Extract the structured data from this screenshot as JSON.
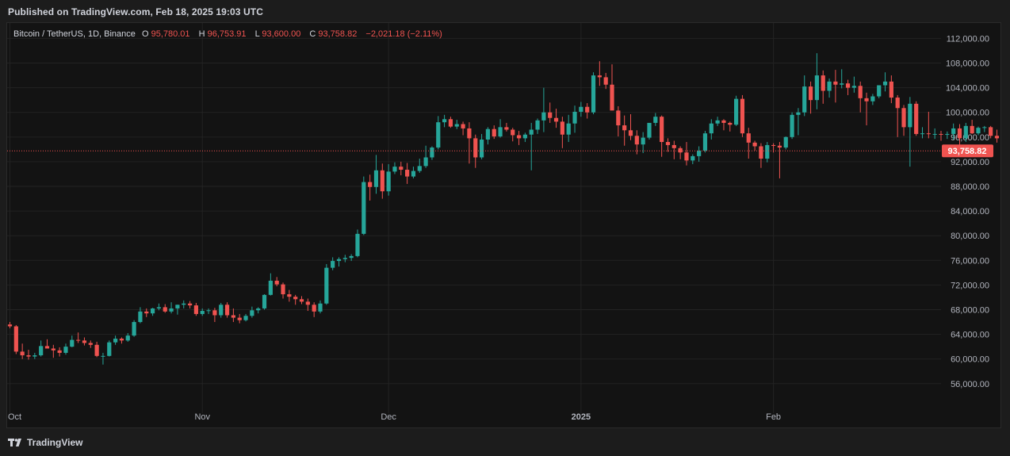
{
  "header": {
    "published": "Published on TradingView.com, Feb 18, 2025 19:03 UTC"
  },
  "footer": {
    "brand": "TradingView"
  },
  "legend": {
    "symbol": "Bitcoin / TetherUS, 1D, Binance",
    "o_label": "O",
    "o_value": "95,780.01",
    "h_label": "H",
    "h_value": "96,753.91",
    "l_label": "L",
    "l_value": "93,600.00",
    "c_label": "C",
    "c_value": "93,758.82",
    "change": "−2,021.18 (−2.11%)"
  },
  "colors": {
    "up": "#26a69a",
    "down": "#ef5350",
    "bg": "#131313",
    "grid": "#232323",
    "text": "#b2b5be"
  },
  "chart_data": {
    "type": "candlestick",
    "title": "Bitcoin / TetherUS, 1D, Binance",
    "xlabel": "",
    "ylabel": "",
    "y_axis_position": "right",
    "ylim": [
      52500,
      114500
    ],
    "y_ticks": [
      "112,000.00",
      "108,000.00",
      "104,000.00",
      "100,000.00",
      "96,000.00",
      "92,000.00",
      "88,000.00",
      "84,000.00",
      "80,000.00",
      "76,000.00",
      "72,000.00",
      "68,000.00",
      "64,000.00",
      "60,000.00",
      "56,000.00"
    ],
    "x_tick_labels": [
      {
        "label": "Oct",
        "index": 0
      },
      {
        "label": "Nov",
        "index": 31
      },
      {
        "label": "Dec",
        "index": 61
      },
      {
        "label": "2025",
        "index": 92
      },
      {
        "label": "Feb",
        "index": 123
      }
    ],
    "last_price": 93758.82,
    "last_price_label": "93,758.82",
    "start_date": "2024-10-01",
    "candles": [
      [
        65600,
        66000,
        65000,
        65300
      ],
      [
        65300,
        65500,
        60800,
        61200
      ],
      [
        61200,
        62500,
        60000,
        60600
      ],
      [
        60600,
        61500,
        59900,
        60400
      ],
      [
        60400,
        61000,
        60000,
        60600
      ],
      [
        60600,
        63000,
        60400,
        62100
      ],
      [
        62100,
        63200,
        61800,
        61700
      ],
      [
        61700,
        62300,
        60200,
        61400
      ],
      [
        61400,
        61900,
        60400,
        61000
      ],
      [
        61000,
        62500,
        60700,
        62000
      ],
      [
        62000,
        63800,
        61900,
        63100
      ],
      [
        63100,
        64300,
        62600,
        63000
      ],
      [
        63000,
        63500,
        62200,
        62600
      ],
      [
        62600,
        63000,
        61800,
        62300
      ],
      [
        62300,
        62800,
        60300,
        60500
      ],
      [
        60500,
        61000,
        59100,
        60500
      ],
      [
        60500,
        63000,
        60400,
        62700
      ],
      [
        62700,
        63800,
        62300,
        63300
      ],
      [
        63300,
        63500,
        62500,
        63000
      ],
      [
        63000,
        64200,
        62800,
        63800
      ],
      [
        63800,
        66300,
        63600,
        66000
      ],
      [
        66000,
        68400,
        65800,
        67700
      ],
      [
        67700,
        68200,
        66800,
        67400
      ],
      [
        67400,
        68300,
        67000,
        68200
      ],
      [
        68200,
        69000,
        67900,
        68400
      ],
      [
        68400,
        68900,
        67500,
        67700
      ],
      [
        67700,
        69200,
        67400,
        68200
      ],
      [
        68200,
        68800,
        67200,
        68800
      ],
      [
        68800,
        69500,
        68200,
        69000
      ],
      [
        69000,
        69400,
        68200,
        68700
      ],
      [
        68700,
        69100,
        67000,
        67300
      ],
      [
        67300,
        68200,
        67000,
        67800
      ],
      [
        67800,
        68200,
        67300,
        67900
      ],
      [
        67900,
        68300,
        66000,
        67100
      ],
      [
        67100,
        69100,
        66700,
        68800
      ],
      [
        68800,
        69200,
        66700,
        67100
      ],
      [
        67100,
        68200,
        66000,
        66700
      ],
      [
        66700,
        67300,
        65800,
        66300
      ],
      [
        66300,
        67300,
        66100,
        67000
      ],
      [
        67000,
        68500,
        66700,
        67900
      ],
      [
        67900,
        68400,
        67400,
        68200
      ],
      [
        68200,
        70500,
        68000,
        70400
      ],
      [
        70400,
        73900,
        70300,
        72700
      ],
      [
        72700,
        73300,
        71800,
        72100
      ],
      [
        72100,
        72400,
        69800,
        70500
      ],
      [
        70500,
        71200,
        69300,
        70100
      ],
      [
        70100,
        70400,
        68800,
        69700
      ],
      [
        69700,
        70200,
        68900,
        69300
      ],
      [
        69300,
        69800,
        67800,
        68800
      ],
      [
        68800,
        69200,
        66800,
        67700
      ],
      [
        67700,
        69500,
        67400,
        69000
      ],
      [
        69000,
        75400,
        68800,
        74800
      ],
      [
        74800,
        76500,
        74400,
        75900
      ],
      [
        75900,
        76500,
        75000,
        76200
      ],
      [
        76200,
        76900,
        75700,
        76400
      ],
      [
        76400,
        77000,
        75900,
        76700
      ],
      [
        76700,
        81000,
        76500,
        80300
      ],
      [
        80300,
        89600,
        80100,
        88700
      ],
      [
        88700,
        89900,
        85700,
        87900
      ],
      [
        87900,
        93100,
        86800,
        90600
      ],
      [
        90600,
        91700,
        86000,
        87200
      ],
      [
        87200,
        91600,
        86500,
        90400
      ],
      [
        90400,
        91900,
        90000,
        91200
      ],
      [
        91200,
        92000,
        89800,
        90700
      ],
      [
        90700,
        91800,
        88400,
        89600
      ],
      [
        89600,
        91200,
        89300,
        90500
      ],
      [
        90500,
        92500,
        90200,
        91300
      ],
      [
        91300,
        94600,
        91000,
        92700
      ],
      [
        92700,
        94500,
        92300,
        94300
      ],
      [
        94300,
        99400,
        94000,
        98400
      ],
      [
        98400,
        99600,
        97600,
        98900
      ],
      [
        98900,
        99300,
        97500,
        97700
      ],
      [
        97700,
        98800,
        97300,
        98100
      ],
      [
        98100,
        98500,
        96300,
        97400
      ],
      [
        97400,
        98400,
        91700,
        95800
      ],
      [
        95800,
        96400,
        91000,
        92700
      ],
      [
        92700,
        96500,
        92400,
        95600
      ],
      [
        95600,
        97600,
        94800,
        97300
      ],
      [
        97300,
        97900,
        95700,
        96100
      ],
      [
        96100,
        98900,
        95900,
        97600
      ],
      [
        97600,
        98300,
        96900,
        97200
      ],
      [
        97200,
        97500,
        95300,
        96300
      ],
      [
        96300,
        97000,
        94700,
        95800
      ],
      [
        95800,
        96700,
        95200,
        96400
      ],
      [
        96400,
        98300,
        90600,
        97200
      ],
      [
        97200,
        99000,
        96500,
        98700
      ],
      [
        98700,
        104000,
        96800,
        100000
      ],
      [
        100000,
        101600,
        98300,
        99100
      ],
      [
        99100,
        100600,
        97500,
        98500
      ],
      [
        98500,
        99300,
        94200,
        96400
      ],
      [
        96400,
        99600,
        95200,
        98200
      ],
      [
        98200,
        101100,
        96700,
        100100
      ],
      [
        100100,
        101700,
        99300,
        100900
      ],
      [
        100900,
        101500,
        99000,
        100000
      ],
      [
        100000,
        106500,
        99700,
        106000
      ],
      [
        106000,
        108300,
        104300,
        105700
      ],
      [
        105700,
        106400,
        103800,
        104500
      ],
      [
        104500,
        107800,
        100800,
        100300
      ],
      [
        100300,
        101000,
        96100,
        97900
      ],
      [
        97900,
        99500,
        94600,
        97100
      ],
      [
        97100,
        99700,
        95500,
        96200
      ],
      [
        96200,
        97100,
        93200,
        94800
      ],
      [
        94800,
        96800,
        93400,
        95900
      ],
      [
        95900,
        97800,
        95600,
        98300
      ],
      [
        98300,
        99900,
        97800,
        99300
      ],
      [
        99300,
        99500,
        92800,
        95200
      ],
      [
        95200,
        95800,
        93600,
        94700
      ],
      [
        94700,
        95400,
        92400,
        94200
      ],
      [
        94200,
        94500,
        92400,
        93500
      ],
      [
        93500,
        95200,
        91400,
        92200
      ],
      [
        92200,
        93200,
        91600,
        92900
      ],
      [
        92900,
        94500,
        92000,
        93800
      ],
      [
        93800,
        97000,
        93500,
        96600
      ],
      [
        96600,
        98900,
        95600,
        98200
      ],
      [
        98200,
        99300,
        97800,
        98700
      ],
      [
        98700,
        98900,
        97100,
        98300
      ],
      [
        98300,
        98500,
        96900,
        98000
      ],
      [
        98000,
        102700,
        97800,
        102200
      ],
      [
        102200,
        102800,
        96000,
        96600
      ],
      [
        96600,
        97500,
        92500,
        95100
      ],
      [
        95100,
        95400,
        93800,
        94500
      ],
      [
        94500,
        95000,
        91000,
        92500
      ],
      [
        92500,
        95200,
        91900,
        94700
      ],
      [
        94700,
        95000,
        93500,
        94600
      ],
      [
        94600,
        95200,
        89300,
        94300
      ],
      [
        94300,
        96100,
        94000,
        96000
      ],
      [
        96000,
        100000,
        95700,
        99600
      ],
      [
        99600,
        100700,
        96300,
        100000
      ],
      [
        100000,
        106000,
        99400,
        104200
      ],
      [
        104200,
        105000,
        99800,
        102000
      ],
      [
        102000,
        109600,
        100500,
        106000
      ],
      [
        106000,
        106800,
        101400,
        103500
      ],
      [
        103500,
        105500,
        102400,
        105000
      ],
      [
        105000,
        106900,
        101600,
        104500
      ],
      [
        104500,
        107000,
        103900,
        104700
      ],
      [
        104700,
        105300,
        102800,
        104000
      ],
      [
        104000,
        105800,
        103200,
        104300
      ],
      [
        104300,
        105000,
        100000,
        102300
      ],
      [
        102300,
        103200,
        97900,
        101800
      ],
      [
        101800,
        103000,
        101200,
        102600
      ],
      [
        102600,
        104400,
        102300,
        104400
      ],
      [
        104400,
        106500,
        103400,
        105000
      ],
      [
        105000,
        106000,
        101500,
        102400
      ],
      [
        102400,
        102800,
        96000,
        100700
      ],
      [
        100700,
        101200,
        96200,
        97600
      ],
      [
        97600,
        102500,
        91200,
        101400
      ],
      [
        101400,
        101800,
        96200,
        96500
      ],
      [
        96500,
        97600,
        95800,
        96600
      ],
      [
        96600,
        100100,
        95800,
        96500
      ],
      [
        96500,
        97400,
        95700,
        96500
      ],
      [
        96500,
        97000,
        95400,
        96400
      ],
      [
        96400,
        96900,
        95700,
        96500
      ],
      [
        96500,
        98200,
        95600,
        97400
      ],
      [
        97400,
        98100,
        94700,
        95800
      ],
      [
        95800,
        98300,
        95200,
        97800
      ],
      [
        97800,
        98800,
        96500,
        96600
      ],
      [
        96600,
        97700,
        96300,
        97500
      ],
      [
        97500,
        97800,
        96800,
        97600
      ],
      [
        97600,
        97800,
        95800,
        96200
      ],
      [
        96200,
        97200,
        95100,
        95800
      ],
      [
        95800,
        96800,
        93600,
        93800
      ]
    ]
  }
}
